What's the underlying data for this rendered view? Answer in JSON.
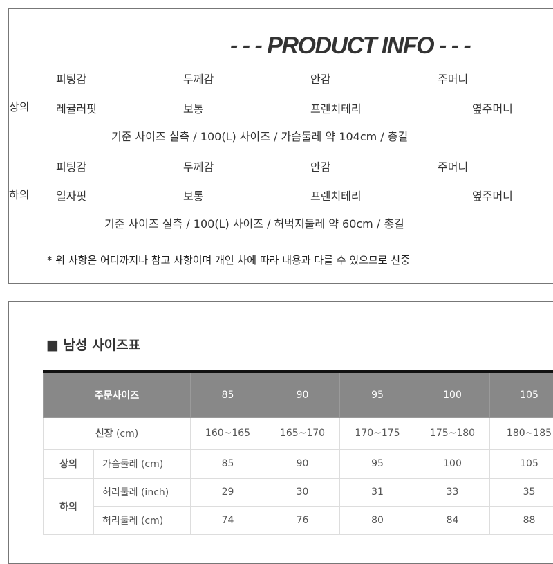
{
  "product_info": {
    "title": "- - - PRODUCT INFO - - -",
    "top": {
      "label": "상의",
      "headers": [
        "피팅감",
        "두께감",
        "안감",
        "주머니"
      ],
      "values": [
        "레귤러핏",
        "보통",
        "프렌치테리",
        "옆주머니"
      ],
      "note": "기준 사이즈 실측 / 100(L) 사이즈 / 가슴둘레 약 104cm / 총길"
    },
    "bottom": {
      "label": "하의",
      "headers": [
        "피팅감",
        "두께감",
        "안감",
        "주머니"
      ],
      "values": [
        "일자핏",
        "보통",
        "프렌치테리",
        "옆주머니"
      ],
      "note": "기준 사이즈 실측 / 100(L) 사이즈 / 허벅지둘레 약 60cm / 총길"
    },
    "footnote": "* 위 사항은 어디까지나 참고 사항이며 개인 차에 따라 내용과 다를 수 있으므로 신중"
  },
  "size_chart": {
    "title": "■ 남성  사이즈표",
    "header_label": "주문사이즈",
    "sizes": [
      "85",
      "90",
      "95",
      "100",
      "105"
    ],
    "height_label": "신장",
    "height_unit": "(cm)",
    "heights": [
      "160~165",
      "165~170",
      "170~175",
      "175~180",
      "180~185"
    ],
    "top_group": "상의",
    "chest_label": "가슴둘레 (cm)",
    "chest": [
      "85",
      "90",
      "95",
      "100",
      "105"
    ],
    "bottom_group": "하의",
    "waist_inch_label": "허리둘레 (inch)",
    "waist_inch": [
      "29",
      "30",
      "31",
      "33",
      "35"
    ],
    "waist_cm_label": "허리둘레 (cm)",
    "waist_cm": [
      "74",
      "76",
      "80",
      "84",
      "88"
    ]
  }
}
